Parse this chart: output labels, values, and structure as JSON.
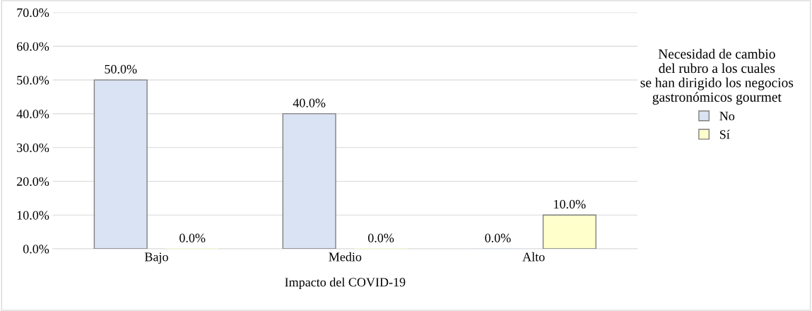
{
  "chart_data": {
    "type": "bar",
    "xlabel": "Impacto del COVID-19",
    "legend_title": "Necesidad de cambio\ndel rubro a los cuales\nse han dirigido los negocios\ngastronómicos gourmet",
    "categories": [
      "Bajo",
      "Medio",
      "Alto"
    ],
    "series": [
      {
        "name": "No",
        "color": "#dae3f3",
        "values": [
          50,
          40,
          0
        ],
        "value_labels": [
          "50.0%",
          "40.0%",
          "0.0%"
        ]
      },
      {
        "name": "Sí",
        "color": "#ffffcc",
        "values": [
          0,
          0,
          10
        ],
        "value_labels": [
          "0.0%",
          "0.0%",
          "10.0%"
        ]
      }
    ],
    "ylim": [
      0,
      70
    ],
    "yticks": [
      {
        "value": 0,
        "label": "0.0%"
      },
      {
        "value": 10,
        "label": "10.0%"
      },
      {
        "value": 20,
        "label": "20.0%"
      },
      {
        "value": 30,
        "label": "30.0%"
      },
      {
        "value": 40,
        "label": "40.0%"
      },
      {
        "value": 50,
        "label": "50.0%"
      },
      {
        "value": 60,
        "label": "60.0%"
      },
      {
        "value": 70,
        "label": "70.0%"
      }
    ],
    "grid": "y",
    "legend": "right"
  }
}
